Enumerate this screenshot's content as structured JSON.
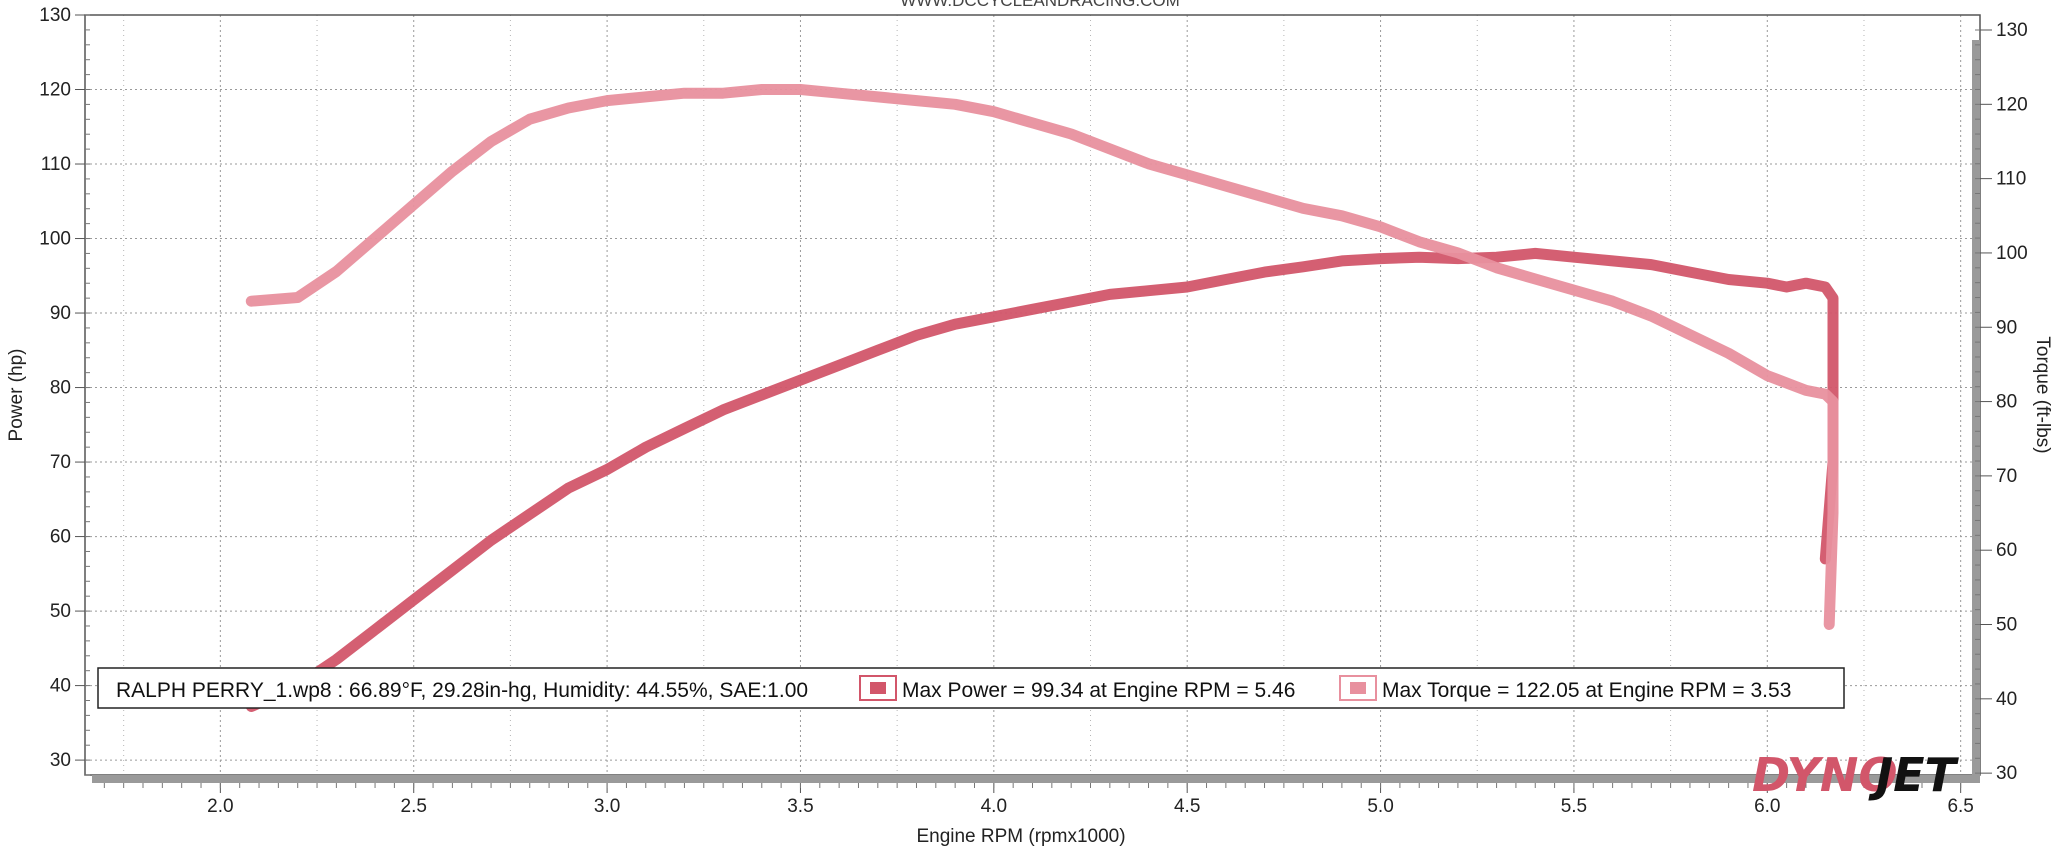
{
  "header": {
    "website": "WWW.DCCYCLEANDRACING.COM"
  },
  "brand": {
    "part1": "DYNO",
    "part2": "JET",
    "part1_color": "#d2566a",
    "part2_color": "#111111"
  },
  "legend": {
    "run_info": "RALPH PERRY_1.wp8 : 66.89°F, 29.28in-hg, Humidity: 44.55%, SAE:1.00",
    "power_entry": "Max Power = 99.34 at Engine RPM = 5.46",
    "torque_entry": "Max Torque = 122.05 at Engine RPM = 3.53"
  },
  "chart_data": {
    "type": "line",
    "xlabel": "Engine RPM (rpmx1000)",
    "ylabel": "Power (hp)",
    "y2label": "Torque (ft-lbs)",
    "xlim": [
      1.65,
      6.55
    ],
    "ylim": [
      28,
      130
    ],
    "y2lim": [
      28,
      130
    ],
    "x_ticks": [
      "2.0",
      "2.5",
      "3.0",
      "3.5",
      "4.0",
      "4.5",
      "5.0",
      "5.5",
      "6.0",
      "6.5"
    ],
    "y_ticks": [
      "30",
      "40",
      "50",
      "60",
      "70",
      "80",
      "90",
      "100",
      "110",
      "120",
      "130"
    ],
    "y2_ticks": [
      "30",
      "40",
      "50",
      "60",
      "70",
      "80",
      "90",
      "100",
      "110",
      "120",
      "130"
    ],
    "grid": true,
    "legend_position": "bottom",
    "series": [
      {
        "name": "Max Power = 99.34 at Engine RPM = 5.46",
        "axis": "left",
        "color": "#d2566a",
        "x": [
          2.08,
          2.2,
          2.3,
          2.4,
          2.5,
          2.6,
          2.7,
          2.8,
          2.9,
          3.0,
          3.1,
          3.2,
          3.3,
          3.4,
          3.5,
          3.6,
          3.7,
          3.8,
          3.9,
          4.0,
          4.1,
          4.2,
          4.3,
          4.4,
          4.5,
          4.6,
          4.7,
          4.8,
          4.9,
          5.0,
          5.1,
          5.2,
          5.3,
          5.4,
          5.5,
          5.6,
          5.7,
          5.8,
          5.9,
          6.0,
          6.05,
          6.1,
          6.15,
          6.17,
          6.17,
          6.15
        ],
        "values": [
          37.2,
          40,
          43.5,
          47.5,
          51.5,
          55.5,
          59.5,
          63,
          66.5,
          69,
          72,
          74.5,
          77,
          79,
          81,
          83,
          85,
          87,
          88.5,
          89.5,
          90.5,
          91.5,
          92.5,
          93,
          93.5,
          94.5,
          95.5,
          96.2,
          97,
          97.3,
          97.5,
          97.3,
          97.5,
          98,
          97.5,
          97,
          96.5,
          95.5,
          94.5,
          94,
          93.5,
          94,
          93.5,
          92,
          70,
          57
        ]
      },
      {
        "name": "Max Torque = 122.05 at Engine RPM = 3.53",
        "axis": "right",
        "color": "#e8909e",
        "x": [
          2.08,
          2.2,
          2.3,
          2.4,
          2.5,
          2.6,
          2.7,
          2.8,
          2.9,
          3.0,
          3.1,
          3.2,
          3.3,
          3.4,
          3.5,
          3.6,
          3.7,
          3.8,
          3.9,
          4.0,
          4.1,
          4.2,
          4.3,
          4.4,
          4.5,
          4.6,
          4.7,
          4.8,
          4.9,
          5.0,
          5.1,
          5.2,
          5.3,
          5.4,
          5.5,
          5.6,
          5.7,
          5.8,
          5.9,
          6.0,
          6.1,
          6.15,
          6.17,
          6.17,
          6.16
        ],
        "values": [
          93.5,
          94,
          97.5,
          102,
          106.5,
          111,
          115,
          118,
          119.5,
          120.5,
          121,
          121.5,
          121.5,
          122,
          122,
          121.5,
          121,
          120.5,
          120,
          119,
          117.5,
          116,
          114,
          112,
          110.5,
          109,
          107.5,
          106,
          105,
          103.5,
          101.5,
          100,
          98,
          96.5,
          95,
          93.5,
          91.5,
          89,
          86.5,
          83.5,
          81.5,
          81,
          80,
          65,
          50
        ]
      }
    ]
  }
}
